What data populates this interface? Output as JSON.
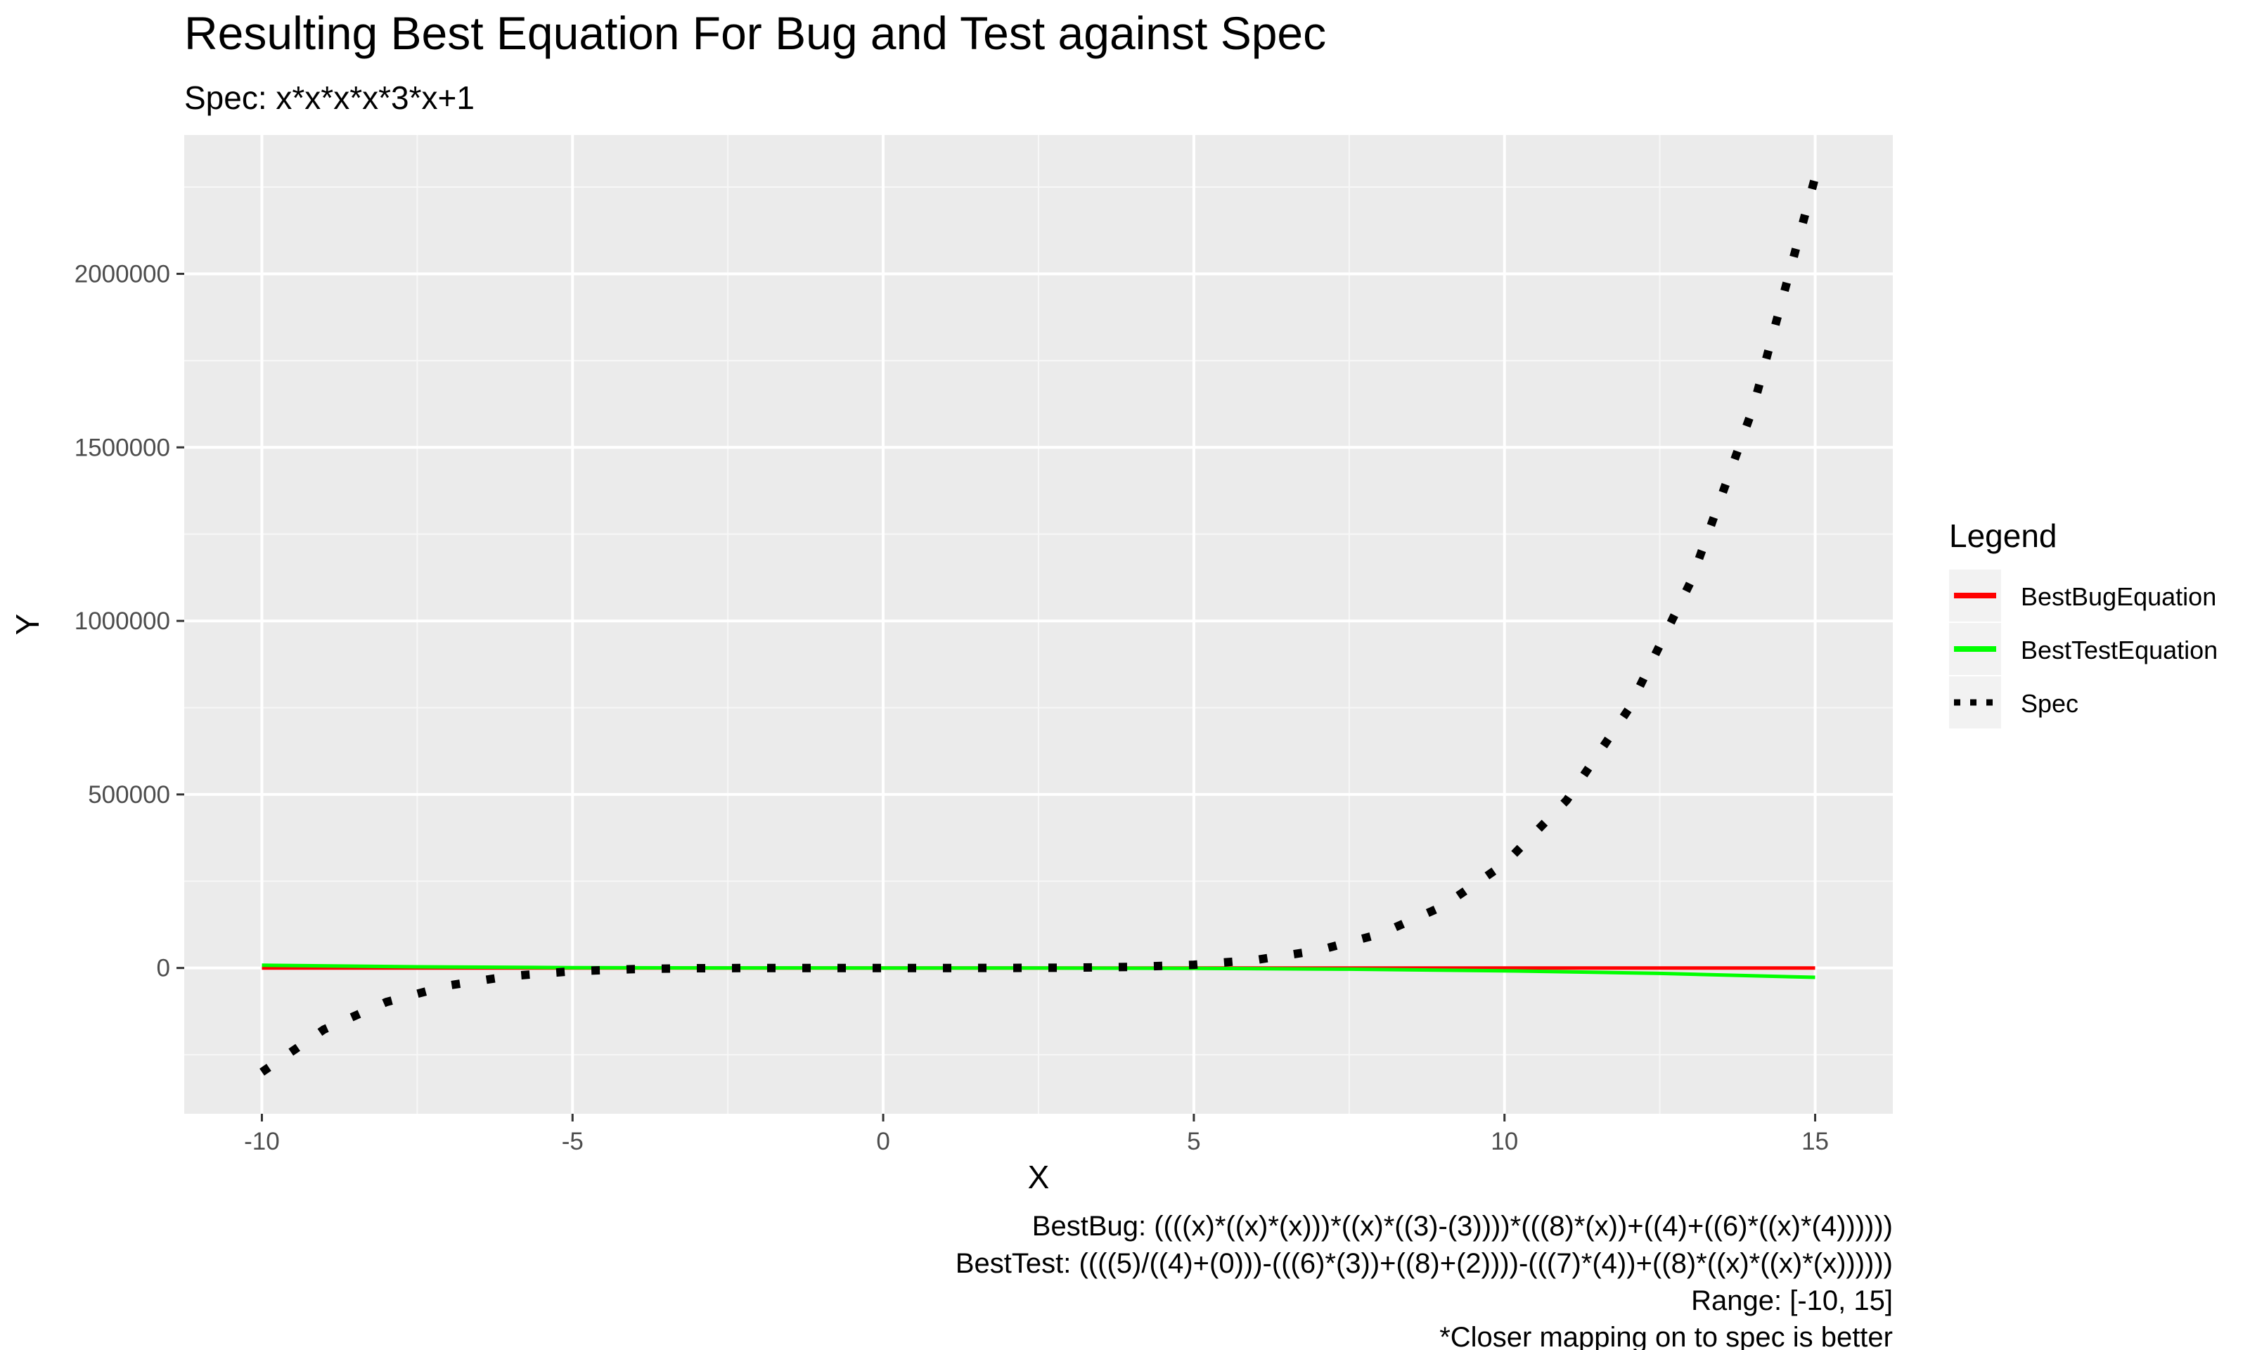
{
  "chart_data": {
    "type": "line",
    "title": "Resulting Best Equation For Bug and Test against Spec",
    "subtitle": "Spec: x*x*x*x*3*x+1",
    "xlabel": "X",
    "ylabel": "Y",
    "xlim": [
      -11.25,
      16.25
    ],
    "ylim": [
      -420000,
      2400000
    ],
    "x_ticks": [
      -10,
      -5,
      0,
      5,
      10,
      15
    ],
    "x_tick_labels": [
      "-10",
      "-5",
      "0",
      "5",
      "10",
      "15"
    ],
    "y_ticks": [
      0,
      500000,
      1000000,
      1500000,
      2000000
    ],
    "y_tick_labels": [
      "0",
      "500000",
      "1000000",
      "1500000",
      "2000000"
    ],
    "grid": true,
    "legend": {
      "title": "Legend",
      "position": "right",
      "entries": [
        "BestBugEquation",
        "BestTestEquation",
        "Spec"
      ]
    },
    "series": [
      {
        "name": "BestBugEquation",
        "color": "#ff0000",
        "style": "solid",
        "x": [
          -10,
          -7.5,
          -5,
          -2.5,
          0,
          2.5,
          5,
          7.5,
          10,
          12.5,
          15
        ],
        "y": [
          0,
          0,
          0,
          0,
          0,
          0,
          0,
          0,
          0,
          0,
          0
        ]
      },
      {
        "name": "BestTestEquation",
        "color": "#00ff00",
        "style": "solid",
        "x": [
          -10,
          -7.5,
          -5,
          -2.5,
          0,
          2.5,
          5,
          7.5,
          10,
          12.5,
          15
        ],
        "y": [
          7960,
          3340,
          960,
          100,
          -20,
          -180,
          -1060,
          -3440,
          -8060,
          -15700,
          -27000
        ]
      },
      {
        "name": "Spec",
        "color": "#000000",
        "style": "dotted",
        "x": [
          -10,
          -9,
          -8,
          -7,
          -6,
          -5,
          -4,
          -3,
          -2,
          -1,
          0,
          1,
          2,
          3,
          4,
          5,
          6,
          7,
          8,
          9,
          10,
          11,
          12,
          13,
          14,
          15
        ],
        "y": [
          -299999,
          -177146,
          -98303,
          -50420,
          -23327,
          -9374,
          -3071,
          -728,
          -95,
          -2,
          1,
          4,
          97,
          730,
          3073,
          9376,
          23329,
          50422,
          98305,
          177148,
          300001,
          483154,
          746497,
          1113880,
          1613473,
          2278126
        ]
      }
    ],
    "caption": [
      "BestBug: ((((x)*((x)*(x)))*((x)*((3)-(3))))*(((8)*(x))+((4)+((6)*((x)*(4))))))",
      "BestTest: ((((5)/((4)+(0)))-(((6)*(3))+((8)+(2))))-(((7)*(4))+((8)*((x)*((x)*(x))))))",
      "Range: [-10, 15]",
      "*Closer mapping on to spec is better"
    ]
  }
}
